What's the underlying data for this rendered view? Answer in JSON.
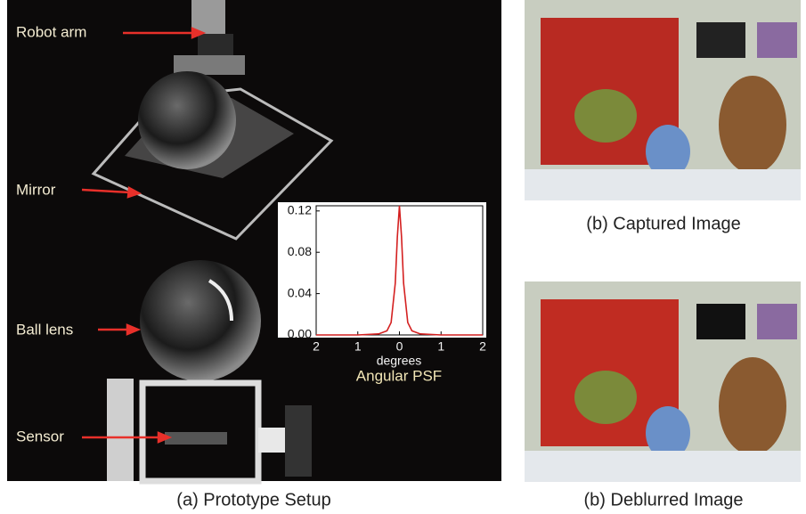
{
  "labels": {
    "robot_arm": "Robot arm",
    "mirror": "Mirror",
    "ball_lens": "Ball lens",
    "sensor": "Sensor"
  },
  "captions": {
    "setup": "(a) Prototype Setup",
    "captured": "(b) Captured Image",
    "deblurred": "(b) Deblurred Image"
  },
  "chart_data": {
    "type": "line",
    "title": "Angular PSF",
    "x_label": "degrees",
    "x": [
      -2,
      -1,
      -0.5,
      -0.3,
      -0.2,
      -0.1,
      -0.05,
      0,
      0.05,
      0.1,
      0.2,
      0.3,
      0.5,
      1,
      2
    ],
    "values": [
      0,
      0,
      0.001,
      0.004,
      0.012,
      0.05,
      0.095,
      0.125,
      0.095,
      0.05,
      0.012,
      0.004,
      0.001,
      0,
      0
    ],
    "color": "#d42020",
    "xlim": [
      -2,
      2
    ],
    "ylim": [
      0,
      0.125
    ],
    "xticks": [
      {
        "value": -2,
        "label": "2"
      },
      {
        "value": -1,
        "label": "1"
      },
      0,
      1,
      2
    ],
    "yticks": [
      {
        "value": 0,
        "label": "0.00"
      },
      {
        "value": 0.04,
        "label": "0.04"
      },
      {
        "value": 0.08,
        "label": "0.08"
      },
      {
        "value": 0.12,
        "label": "0.12"
      }
    ]
  }
}
